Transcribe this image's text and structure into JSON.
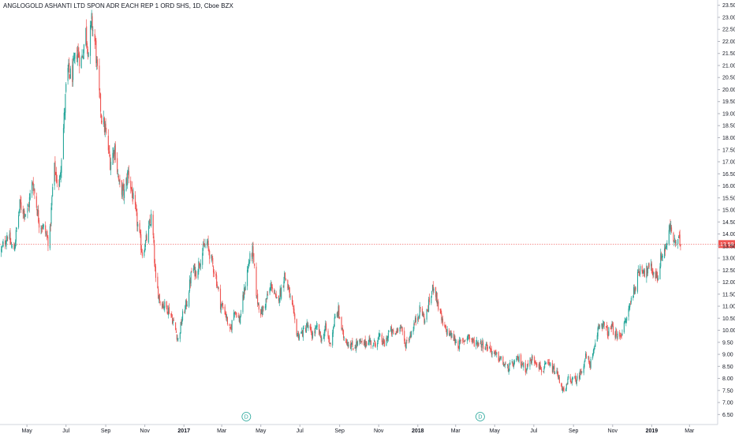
{
  "chart_data": {
    "type": "candlestick",
    "title": "ANGLOGOLD ASHANTI LTD SPON ADR EACH REP 1 ORD SHS, 1D, Cboe BZX",
    "y_ticks": [
      "6.50",
      "7.00",
      "7.50",
      "8.00",
      "8.50",
      "9.00",
      "9.50",
      "10.00",
      "10.50",
      "11.00",
      "11.50",
      "12.00",
      "12.50",
      "13.00",
      "13.50",
      "14.00",
      "14.50",
      "15.00",
      "15.50",
      "16.00",
      "16.50",
      "17.00",
      "17.50",
      "18.00",
      "18.50",
      "19.00",
      "19.50",
      "20.00",
      "20.50",
      "21.00",
      "21.50",
      "22.00",
      "22.50",
      "23.00",
      "23.50"
    ],
    "ylim": [
      6.15,
      23.72
    ],
    "x_ticks": [
      {
        "label": "May",
        "bold": false
      },
      {
        "label": "Jul",
        "bold": false
      },
      {
        "label": "Sep",
        "bold": false
      },
      {
        "label": "Nov",
        "bold": false
      },
      {
        "label": "2017",
        "bold": true
      },
      {
        "label": "Mar",
        "bold": false
      },
      {
        "label": "May",
        "bold": false
      },
      {
        "label": "Jul",
        "bold": false
      },
      {
        "label": "Sep",
        "bold": false
      },
      {
        "label": "Nov",
        "bold": false
      },
      {
        "label": "2018",
        "bold": true
      },
      {
        "label": "Mar",
        "bold": false
      },
      {
        "label": "May",
        "bold": false
      },
      {
        "label": "Jul",
        "bold": false
      },
      {
        "label": "Sep",
        "bold": false
      },
      {
        "label": "Nov",
        "bold": false
      },
      {
        "label": "2019",
        "bold": true
      },
      {
        "label": "Mar",
        "bold": false
      }
    ],
    "last_price": "13.58",
    "last_price_value": 13.58,
    "dividend_markers": [
      {
        "label": "D",
        "date": "2017-04"
      },
      {
        "label": "D",
        "date": "2018-04"
      }
    ],
    "up_color": "#26a69a",
    "down_color": "#ef5350",
    "price_line_color": "#ef5350",
    "close_path": [
      [
        "2016-03-22",
        13.3
      ],
      [
        "2016-04-01",
        14.0
      ],
      [
        "2016-04-10",
        13.2
      ],
      [
        "2016-04-20",
        15.2
      ],
      [
        "2016-05-01",
        14.8
      ],
      [
        "2016-05-10",
        16.2
      ],
      [
        "2016-05-20",
        14.5
      ],
      [
        "2016-05-28",
        14.2
      ],
      [
        "2016-06-05",
        13.6
      ],
      [
        "2016-06-12",
        16.8
      ],
      [
        "2016-06-20",
        15.9
      ],
      [
        "2016-06-26",
        18.0
      ],
      [
        "2016-07-03",
        20.8
      ],
      [
        "2016-07-10",
        20.5
      ],
      [
        "2016-07-18",
        21.6
      ],
      [
        "2016-07-25",
        21.2
      ],
      [
        "2016-08-01",
        22.4
      ],
      [
        "2016-08-05",
        21.6
      ],
      [
        "2016-08-10",
        22.8
      ],
      [
        "2016-08-16",
        21.8
      ],
      [
        "2016-08-20",
        20.2
      ],
      [
        "2016-08-25",
        19.0
      ],
      [
        "2016-09-01",
        18.2
      ],
      [
        "2016-09-08",
        17.0
      ],
      [
        "2016-09-15",
        17.6
      ],
      [
        "2016-09-22",
        16.0
      ],
      [
        "2016-09-30",
        15.7
      ],
      [
        "2016-10-06",
        16.6
      ],
      [
        "2016-10-14",
        15.4
      ],
      [
        "2016-10-20",
        14.5
      ],
      [
        "2016-10-28",
        13.2
      ],
      [
        "2016-11-05",
        13.9
      ],
      [
        "2016-11-12",
        14.8
      ],
      [
        "2016-11-18",
        12.0
      ],
      [
        "2016-11-25",
        11.2
      ],
      [
        "2016-12-03",
        11.0
      ],
      [
        "2016-12-10",
        10.8
      ],
      [
        "2016-12-17",
        10.2
      ],
      [
        "2016-12-23",
        9.6
      ],
      [
        "2016-12-30",
        10.6
      ],
      [
        "2017-01-06",
        11.2
      ],
      [
        "2017-01-14",
        12.6
      ],
      [
        "2017-01-20",
        12.4
      ],
      [
        "2017-01-28",
        13.1
      ],
      [
        "2017-02-05",
        13.7
      ],
      [
        "2017-02-12",
        13.0
      ],
      [
        "2017-02-20",
        12.2
      ],
      [
        "2017-02-27",
        11.1
      ],
      [
        "2017-03-06",
        10.8
      ],
      [
        "2017-03-14",
        9.9
      ],
      [
        "2017-03-21",
        10.9
      ],
      [
        "2017-03-29",
        10.4
      ],
      [
        "2017-04-05",
        11.6
      ],
      [
        "2017-04-12",
        12.8
      ],
      [
        "2017-04-18",
        13.3
      ],
      [
        "2017-04-25",
        11.3
      ],
      [
        "2017-05-02",
        10.7
      ],
      [
        "2017-05-10",
        11.3
      ],
      [
        "2017-05-18",
        11.9
      ],
      [
        "2017-05-25",
        11.2
      ],
      [
        "2017-06-01",
        11.6
      ],
      [
        "2017-06-07",
        12.3
      ],
      [
        "2017-06-13",
        11.7
      ],
      [
        "2017-06-20",
        10.8
      ],
      [
        "2017-06-27",
        9.8
      ],
      [
        "2017-07-05",
        9.9
      ],
      [
        "2017-07-12",
        10.2
      ],
      [
        "2017-07-20",
        9.8
      ],
      [
        "2017-07-28",
        10.1
      ],
      [
        "2017-08-04",
        9.6
      ],
      [
        "2017-08-10",
        10.1
      ],
      [
        "2017-08-17",
        9.4
      ],
      [
        "2017-08-24",
        10.4
      ],
      [
        "2017-08-30",
        10.8
      ],
      [
        "2017-09-06",
        9.8
      ],
      [
        "2017-09-14",
        9.5
      ],
      [
        "2017-09-22",
        9.3
      ],
      [
        "2017-09-30",
        9.5
      ],
      [
        "2017-10-08",
        9.4
      ],
      [
        "2017-10-16",
        9.6
      ],
      [
        "2017-10-24",
        9.4
      ],
      [
        "2017-11-02",
        9.7
      ],
      [
        "2017-11-10",
        9.4
      ],
      [
        "2017-11-18",
        10.0
      ],
      [
        "2017-11-26",
        9.8
      ],
      [
        "2017-12-04",
        10.3
      ],
      [
        "2017-12-12",
        9.4
      ],
      [
        "2017-12-20",
        9.8
      ],
      [
        "2017-12-27",
        10.3
      ],
      [
        "2018-01-05",
        10.9
      ],
      [
        "2018-01-12",
        10.4
      ],
      [
        "2018-01-20",
        11.3
      ],
      [
        "2018-01-26",
        11.9
      ],
      [
        "2018-02-02",
        11.0
      ],
      [
        "2018-02-10",
        10.1
      ],
      [
        "2018-02-18",
        9.9
      ],
      [
        "2018-02-25",
        9.7
      ],
      [
        "2018-03-05",
        9.4
      ],
      [
        "2018-03-12",
        9.5
      ],
      [
        "2018-03-20",
        9.8
      ],
      [
        "2018-03-28",
        9.5
      ],
      [
        "2018-04-06",
        9.5
      ],
      [
        "2018-04-14",
        9.4
      ],
      [
        "2018-04-22",
        9.3
      ],
      [
        "2018-04-30",
        9.0
      ],
      [
        "2018-05-10",
        8.8
      ],
      [
        "2018-05-20",
        8.4
      ],
      [
        "2018-05-30",
        8.6
      ],
      [
        "2018-06-08",
        8.8
      ],
      [
        "2018-06-18",
        8.4
      ],
      [
        "2018-06-28",
        8.8
      ],
      [
        "2018-07-06",
        8.7
      ],
      [
        "2018-07-14",
        8.3
      ],
      [
        "2018-07-22",
        8.6
      ],
      [
        "2018-07-30",
        8.4
      ],
      [
        "2018-08-06",
        8.2
      ],
      [
        "2018-08-12",
        7.8
      ],
      [
        "2018-08-18",
        7.3
      ],
      [
        "2018-08-24",
        8.0
      ],
      [
        "2018-09-01",
        7.9
      ],
      [
        "2018-09-08",
        8.0
      ],
      [
        "2018-09-14",
        8.4
      ],
      [
        "2018-09-20",
        8.9
      ],
      [
        "2018-09-27",
        8.6
      ],
      [
        "2018-10-04",
        9.2
      ],
      [
        "2018-10-10",
        10.2
      ],
      [
        "2018-10-16",
        10.3
      ],
      [
        "2018-10-24",
        9.9
      ],
      [
        "2018-10-31",
        10.1
      ],
      [
        "2018-11-08",
        9.7
      ],
      [
        "2018-11-15",
        9.9
      ],
      [
        "2018-11-22",
        10.4
      ],
      [
        "2018-11-30",
        11.3
      ],
      [
        "2018-12-08",
        12.0
      ],
      [
        "2018-12-15",
        12.7
      ],
      [
        "2018-12-22",
        12.4
      ],
      [
        "2018-12-30",
        12.6
      ],
      [
        "2019-01-04",
        12.4
      ],
      [
        "2019-01-10",
        12.2
      ],
      [
        "2019-01-16",
        13.1
      ],
      [
        "2019-01-24",
        13.5
      ],
      [
        "2019-01-30",
        14.3
      ],
      [
        "2019-02-06",
        13.6
      ],
      [
        "2019-02-12",
        13.7
      ],
      [
        "2019-02-18",
        13.58
      ]
    ]
  }
}
